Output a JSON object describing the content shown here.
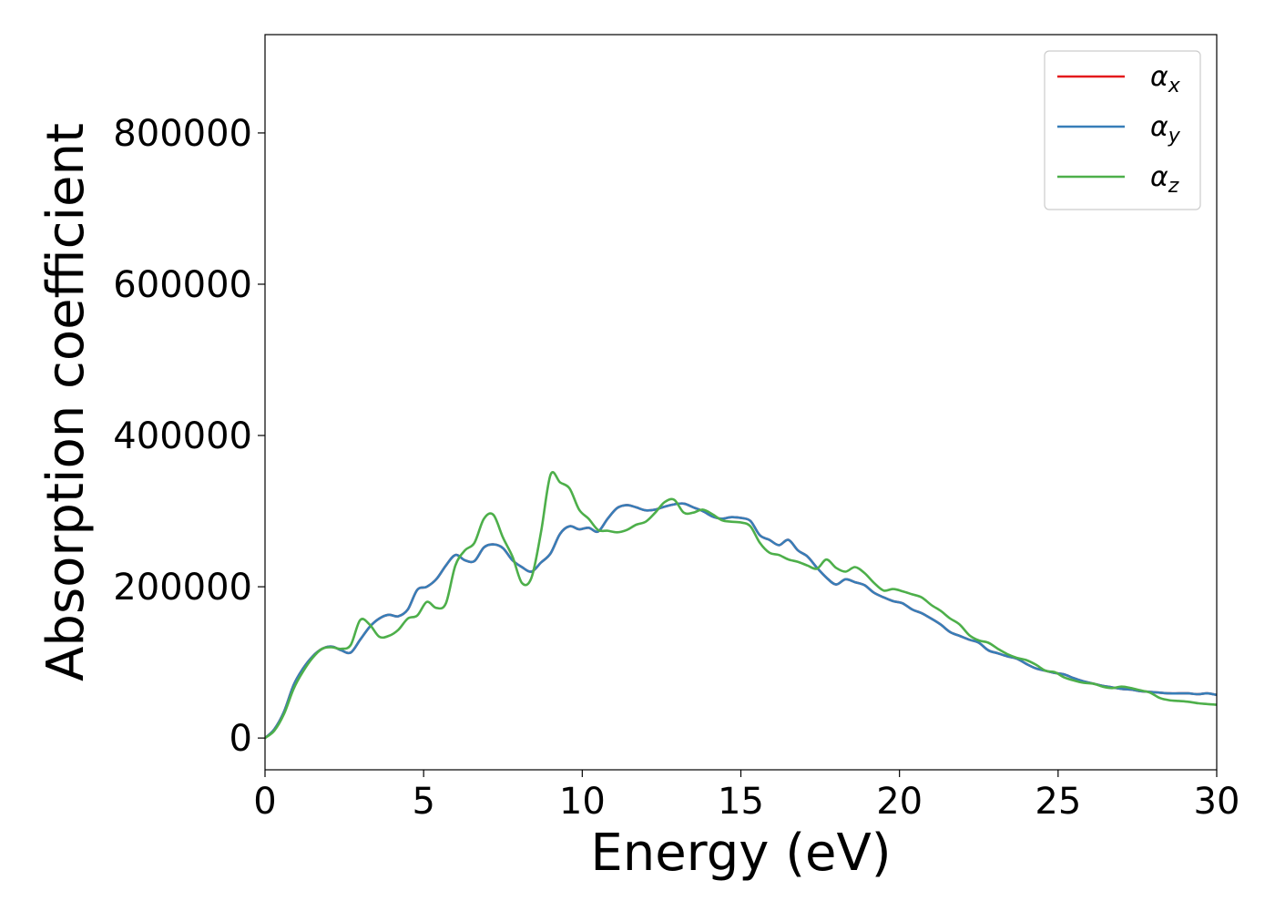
{
  "chart_data": {
    "type": "line",
    "title": "",
    "xlabel": "Energy (eV)",
    "ylabel": "Absorption coefficient",
    "xlim": [
      0,
      30
    ],
    "ylim": [
      -42000,
      930000
    ],
    "grid": false,
    "legend_position": "top-right",
    "x_ticks": [
      0,
      5,
      10,
      15,
      20,
      25,
      30
    ],
    "y_ticks": [
      0,
      200000,
      400000,
      600000,
      800000
    ],
    "colors": {
      "alpha_x": "#e41a1c",
      "alpha_y": "#377eb8",
      "alpha_z": "#4daf4a"
    },
    "series": [
      {
        "name": "α_x",
        "legend_base": "α",
        "legend_sub": "x",
        "color": "#e41a1c",
        "x": [
          0,
          0.3,
          0.6,
          0.9,
          1.2,
          1.5,
          1.8,
          2.1,
          2.4,
          2.7,
          3.0,
          3.3,
          3.6,
          3.9,
          4.2,
          4.5,
          4.8,
          5.1,
          5.4,
          5.7,
          6.0,
          6.3,
          6.6,
          6.9,
          7.2,
          7.5,
          7.8,
          8.1,
          8.4,
          8.7,
          9.0,
          9.3,
          9.6,
          9.9,
          10.2,
          10.5,
          10.8,
          11.1,
          11.4,
          11.7,
          12.0,
          12.3,
          12.6,
          12.9,
          13.2,
          13.5,
          13.8,
          14.1,
          14.4,
          14.7,
          15.0,
          15.3,
          15.6,
          15.9,
          16.2,
          16.5,
          16.8,
          17.1,
          17.4,
          17.7,
          18.0,
          18.3,
          18.6,
          18.9,
          19.2,
          19.5,
          19.8,
          20.1,
          20.4,
          20.7,
          21.0,
          21.3,
          21.6,
          21.9,
          22.2,
          22.5,
          22.8,
          23.1,
          23.4,
          23.7,
          24.0,
          24.3,
          24.6,
          24.9,
          25.2,
          25.5,
          25.8,
          26.1,
          26.4,
          26.7,
          27.0,
          27.3,
          27.6,
          27.9,
          28.2,
          28.5,
          28.8,
          29.1,
          29.4,
          29.7,
          30.0
        ],
        "values": [
          0,
          12000,
          35000,
          70000,
          92000,
          108000,
          118000,
          121000,
          116000,
          113000,
          130000,
          147000,
          158000,
          163000,
          161000,
          170000,
          196000,
          200000,
          210000,
          228000,
          242000,
          235000,
          234000,
          252000,
          256000,
          251000,
          235000,
          226000,
          220000,
          232000,
          244000,
          270000,
          280000,
          276000,
          278000,
          273000,
          290000,
          304000,
          308000,
          305000,
          301000,
          302000,
          306000,
          309000,
          310000,
          305000,
          300000,
          293000,
          290000,
          292000,
          291000,
          287000,
          268000,
          262000,
          255000,
          262000,
          248000,
          240000,
          225000,
          212000,
          203000,
          210000,
          206000,
          202000,
          192000,
          186000,
          181000,
          178000,
          170000,
          165000,
          158000,
          150000,
          140000,
          135000,
          130000,
          126000,
          116000,
          112000,
          108000,
          105000,
          98000,
          92000,
          89000,
          86000,
          84000,
          79000,
          75000,
          72000,
          69000,
          67000,
          65000,
          64000,
          62000,
          61000,
          60000,
          59000,
          59000,
          59000,
          58000,
          59000,
          57000
        ]
      },
      {
        "name": "α_y",
        "legend_base": "α",
        "legend_sub": "y",
        "color": "#377eb8",
        "x": [
          0,
          0.3,
          0.6,
          0.9,
          1.2,
          1.5,
          1.8,
          2.1,
          2.4,
          2.7,
          3.0,
          3.3,
          3.6,
          3.9,
          4.2,
          4.5,
          4.8,
          5.1,
          5.4,
          5.7,
          6.0,
          6.3,
          6.6,
          6.9,
          7.2,
          7.5,
          7.8,
          8.1,
          8.4,
          8.7,
          9.0,
          9.3,
          9.6,
          9.9,
          10.2,
          10.5,
          10.8,
          11.1,
          11.4,
          11.7,
          12.0,
          12.3,
          12.6,
          12.9,
          13.2,
          13.5,
          13.8,
          14.1,
          14.4,
          14.7,
          15.0,
          15.3,
          15.6,
          15.9,
          16.2,
          16.5,
          16.8,
          17.1,
          17.4,
          17.7,
          18.0,
          18.3,
          18.6,
          18.9,
          19.2,
          19.5,
          19.8,
          20.1,
          20.4,
          20.7,
          21.0,
          21.3,
          21.6,
          21.9,
          22.2,
          22.5,
          22.8,
          23.1,
          23.4,
          23.7,
          24.0,
          24.3,
          24.6,
          24.9,
          25.2,
          25.5,
          25.8,
          26.1,
          26.4,
          26.7,
          27.0,
          27.3,
          27.6,
          27.9,
          28.2,
          28.5,
          28.8,
          29.1,
          29.4,
          29.7,
          30.0
        ],
        "values": [
          0,
          12000,
          35000,
          70000,
          92000,
          108000,
          118000,
          121000,
          116000,
          113000,
          130000,
          147000,
          158000,
          163000,
          161000,
          170000,
          196000,
          200000,
          210000,
          228000,
          242000,
          235000,
          234000,
          252000,
          256000,
          251000,
          235000,
          226000,
          220000,
          232000,
          244000,
          270000,
          280000,
          276000,
          278000,
          273000,
          290000,
          304000,
          308000,
          305000,
          301000,
          302000,
          306000,
          309000,
          310000,
          305000,
          300000,
          293000,
          290000,
          292000,
          291000,
          287000,
          268000,
          262000,
          255000,
          262000,
          248000,
          240000,
          225000,
          212000,
          203000,
          210000,
          206000,
          202000,
          192000,
          186000,
          181000,
          178000,
          170000,
          165000,
          158000,
          150000,
          140000,
          135000,
          130000,
          126000,
          116000,
          112000,
          108000,
          105000,
          98000,
          92000,
          89000,
          86000,
          84000,
          79000,
          75000,
          72000,
          69000,
          67000,
          65000,
          64000,
          62000,
          61000,
          60000,
          59000,
          59000,
          59000,
          58000,
          59000,
          57000
        ]
      },
      {
        "name": "α_z",
        "legend_base": "α",
        "legend_sub": "z",
        "color": "#4daf4a",
        "x": [
          0,
          0.3,
          0.6,
          0.9,
          1.2,
          1.5,
          1.8,
          2.1,
          2.4,
          2.7,
          3.0,
          3.3,
          3.6,
          3.9,
          4.2,
          4.5,
          4.8,
          5.1,
          5.4,
          5.7,
          6.0,
          6.3,
          6.6,
          6.9,
          7.2,
          7.5,
          7.8,
          8.1,
          8.4,
          8.7,
          9.0,
          9.3,
          9.6,
          9.9,
          10.2,
          10.5,
          10.8,
          11.1,
          11.4,
          11.7,
          12.0,
          12.3,
          12.6,
          12.9,
          13.2,
          13.5,
          13.8,
          14.1,
          14.4,
          14.7,
          15.0,
          15.3,
          15.6,
          15.9,
          16.2,
          16.5,
          16.8,
          17.1,
          17.4,
          17.7,
          18.0,
          18.3,
          18.6,
          18.9,
          19.2,
          19.5,
          19.8,
          20.1,
          20.4,
          20.7,
          21.0,
          21.3,
          21.6,
          21.9,
          22.2,
          22.5,
          22.8,
          23.1,
          23.4,
          23.7,
          24.0,
          24.3,
          24.6,
          24.9,
          25.2,
          25.5,
          25.8,
          26.1,
          26.4,
          26.7,
          27.0,
          27.3,
          27.6,
          27.9,
          28.2,
          28.5,
          28.8,
          29.1,
          29.4,
          29.7,
          30.0
        ],
        "values": [
          0,
          10000,
          32000,
          65000,
          88000,
          106000,
          118000,
          120000,
          118000,
          123000,
          156000,
          150000,
          134000,
          135000,
          143000,
          158000,
          162000,
          180000,
          172000,
          178000,
          228000,
          248000,
          258000,
          290000,
          295000,
          265000,
          240000,
          205000,
          212000,
          272000,
          348000,
          338000,
          330000,
          302000,
          290000,
          275000,
          274000,
          272000,
          275000,
          282000,
          286000,
          298000,
          312000,
          315000,
          298000,
          298000,
          302000,
          296000,
          288000,
          286000,
          285000,
          280000,
          258000,
          245000,
          242000,
          236000,
          233000,
          228000,
          224000,
          236000,
          225000,
          220000,
          226000,
          218000,
          205000,
          195000,
          197000,
          194000,
          190000,
          186000,
          176000,
          168000,
          158000,
          150000,
          136000,
          129000,
          126000,
          118000,
          111000,
          106000,
          103000,
          97000,
          89000,
          87000,
          80000,
          76000,
          73000,
          72000,
          68000,
          66000,
          68000,
          66000,
          63000,
          60000,
          53000,
          50000,
          49000,
          48000,
          46000,
          45000,
          44000
        ]
      }
    ]
  }
}
